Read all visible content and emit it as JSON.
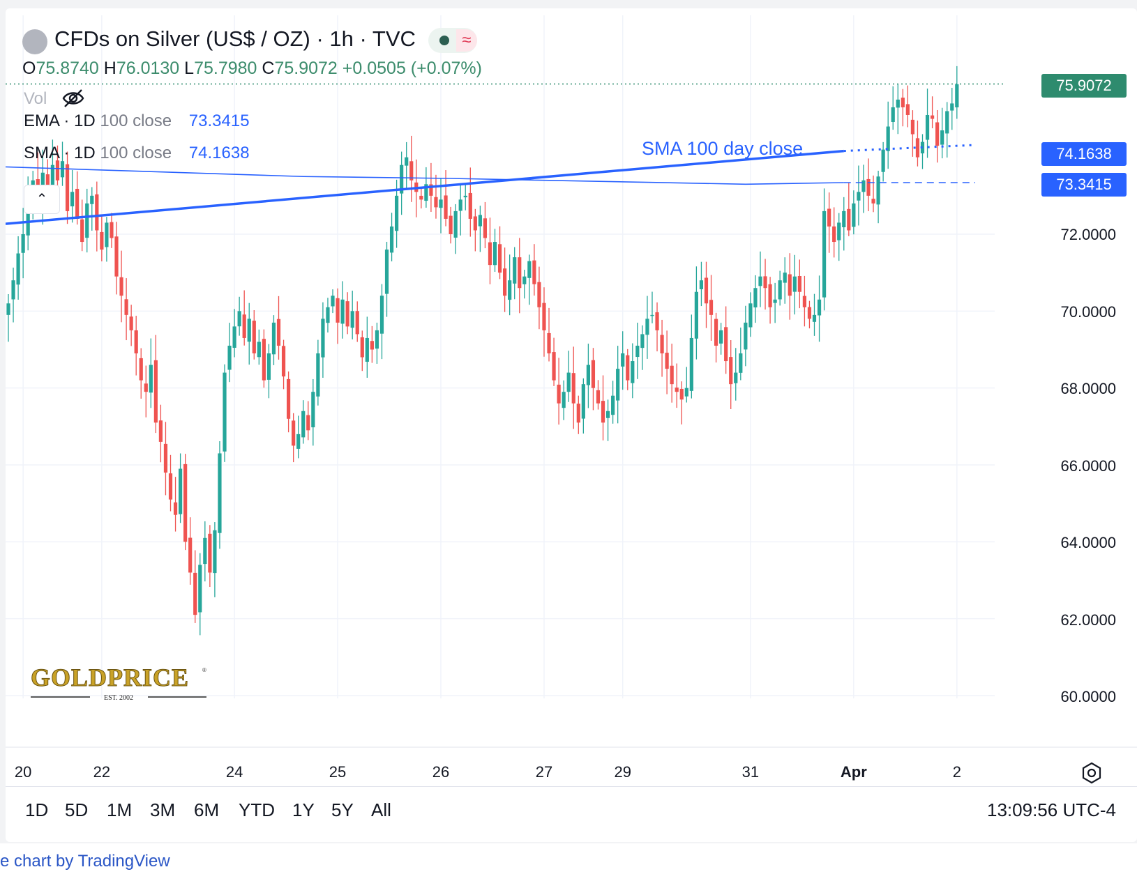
{
  "header": {
    "title": "CFDs on Silver (US$ / OZ) · 1h · TVC",
    "ohlc": {
      "o_label": "O",
      "o": "75.8740",
      "h_label": "H",
      "h": "76.0130",
      "l_label": "L",
      "l": "75.7980",
      "c_label": "C",
      "c": "75.9072",
      "change": "+0.0505 (+0.07%)"
    },
    "status_wave": "≈"
  },
  "indicators": {
    "vol": "Vol",
    "ema": {
      "name": "EMA",
      "params": "· 1D",
      "params_gray": "100 close",
      "value": "73.3415"
    },
    "sma": {
      "name": "SMA",
      "params": "· 1D",
      "params_gray": "100 close",
      "value": "74.1638"
    }
  },
  "annotation": "SMA 100 day close",
  "price_tags": {
    "last": "75.9072",
    "sma": "74.1638",
    "ema": "73.3415"
  },
  "y_axis": [
    "72.0000",
    "70.0000",
    "68.0000",
    "66.0000",
    "64.0000",
    "62.0000",
    "60.0000"
  ],
  "x_axis": [
    "20",
    "22",
    "24",
    "25",
    "26",
    "27",
    "29",
    "31",
    "Apr",
    "2"
  ],
  "range_buttons": [
    "1D",
    "5D",
    "1M",
    "3M",
    "6M",
    "YTD",
    "1Y",
    "5Y",
    "All"
  ],
  "clock": "13:09:56 UTC-4",
  "attribution": "e chart by TradingView",
  "logo": {
    "name": "GOLDPRICE",
    "sub": "EST. 2002"
  },
  "colors": {
    "up": "#26a69a",
    "down": "#ef5350",
    "ma": "#2962ff",
    "last_tag": "#2e8b6e",
    "ma_tag": "#2962ff"
  },
  "chart_data": {
    "type": "candlestick",
    "title": "CFDs on Silver (US$ / OZ) · 1h · TVC",
    "ylim": [
      59.6,
      77.0
    ],
    "y_ticks": [
      60,
      62,
      64,
      66,
      68,
      70,
      72
    ],
    "x_ticks": [
      "20",
      "22",
      "24",
      "25",
      "26",
      "27",
      "29",
      "31",
      "Apr",
      "2"
    ],
    "x_tick_index": [
      3,
      19,
      46,
      67,
      88,
      109,
      125,
      151,
      172,
      193
    ],
    "x_count": 198,
    "last_price": 75.9072,
    "close": [
      70.2,
      70.8,
      71.5,
      72.0,
      72.9,
      73.4,
      72.9,
      73.6,
      73.1,
      73.8,
      73.4,
      73.9,
      72.6,
      73.1,
      72.4,
      71.8,
      72.8,
      73.0,
      72.1,
      71.6,
      72.3,
      71.9,
      70.9,
      70.4,
      69.9,
      69.5,
      68.9,
      68.2,
      67.9,
      68.6,
      67.1,
      66.6,
      65.8,
      65.1,
      64.7,
      65.9,
      64.0,
      63.2,
      62.1,
      63.4,
      64.1,
      63.2,
      64.3,
      66.3,
      68.4,
      69.1,
      69.6,
      70.0,
      69.3,
      69.8,
      68.9,
      69.2,
      68.2,
      68.9,
      69.7,
      69.1,
      68.3,
      67.2,
      66.5,
      66.8,
      67.4,
      66.9,
      67.9,
      68.9,
      69.8,
      70.1,
      70.4,
      69.7,
      70.3,
      69.6,
      70.0,
      69.4,
      68.8,
      69.3,
      69.0,
      69.5,
      70.4,
      71.6,
      72.2,
      73.0,
      73.8,
      74.0,
      73.4,
      73.1,
      72.9,
      73.3,
      73.0,
      72.7,
      72.9,
      72.4,
      72.0,
      72.6,
      72.9,
      73.0,
      72.4,
      72.1,
      72.5,
      71.9,
      71.2,
      71.8,
      71.0,
      70.4,
      70.8,
      71.4,
      70.6,
      70.9,
      71.3,
      70.7,
      70.1,
      69.5,
      68.9,
      68.2,
      67.6,
      67.9,
      68.4,
      67.6,
      67.1,
      68.1,
      68.6,
      68.0,
      67.6,
      67.1,
      67.4,
      67.8,
      68.5,
      68.9,
      68.2,
      68.7,
      69.1,
      69.4,
      69.8,
      69.9,
      69.5,
      68.9,
      68.5,
      68.1,
      67.9,
      67.7,
      68.0,
      69.3,
      70.5,
      70.8,
      70.2,
      69.9,
      69.1,
      69.5,
      68.7,
      68.1,
      68.4,
      68.9,
      69.7,
      70.2,
      70.6,
      70.9,
      70.6,
      70.1,
      70.3,
      70.8,
      71.0,
      70.4,
      70.9,
      70.5,
      70.1,
      69.8,
      69.9,
      70.3,
      72.6,
      72.2,
      71.8,
      72.3,
      72.6,
      72.1,
      72.8,
      73.1,
      73.4,
      73.0,
      72.8,
      73.5,
      74.2,
      74.8,
      75.3,
      75.5,
      75.3,
      75.1,
      74.6,
      74.0,
      74.4,
      75.1,
      75.0,
      74.3,
      74.7,
      75.2,
      75.4,
      75.9
    ]
  }
}
